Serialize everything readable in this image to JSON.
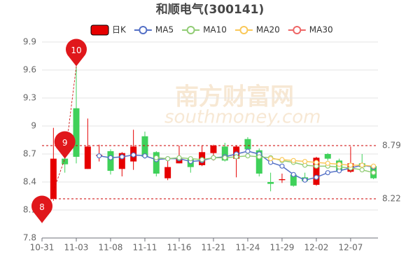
{
  "chart_data": {
    "type": "candlestick",
    "title": "和顺电气(300141)",
    "watermark": [
      "南方财富网",
      "southmoney.com"
    ],
    "categories": [
      "10-31",
      null,
      null,
      "11-03",
      null,
      null,
      "11-08",
      null,
      null,
      "11-11",
      null,
      null,
      "11-16",
      null,
      null,
      "11-21",
      null,
      null,
      "11-24",
      null,
      null,
      "11-29",
      null,
      null,
      "12-02",
      null,
      null,
      "12-07",
      null,
      null
    ],
    "ylim": [
      7.8,
      9.9
    ],
    "yticks": [
      7.8,
      8.1,
      8.4,
      8.7,
      9,
      9.3,
      9.6,
      9.9
    ],
    "grid": true,
    "legend": "top",
    "candles": {
      "name": "日K",
      "up_color": "#e60000",
      "down_color": "#3fd15a",
      "open": [
        null,
        8.22,
        8.65,
        9.19,
        8.54,
        8.68,
        8.73,
        8.54,
        8.62,
        8.89,
        8.72,
        8.44,
        8.6,
        8.65,
        8.58,
        8.71,
        8.78,
        8.65,
        8.86,
        8.74,
        8.4,
        8.42,
        8.48,
        8.45,
        8.37,
        8.7,
        8.63,
        8.51,
        8.6,
        8.57
      ],
      "close": [
        null,
        8.65,
        8.59,
        8.67,
        8.78,
        8.69,
        8.52,
        8.71,
        8.78,
        8.67,
        8.49,
        8.56,
        8.65,
        8.56,
        8.72,
        8.79,
        8.63,
        8.78,
        8.75,
        8.49,
        8.38,
        8.43,
        8.36,
        8.41,
        8.66,
        8.65,
        8.52,
        8.6,
        8.56,
        8.44
      ],
      "high": [
        null,
        8.98,
        8.78,
        9.64,
        9.08,
        8.8,
        8.75,
        8.72,
        8.96,
        8.94,
        8.73,
        8.66,
        8.79,
        8.67,
        8.79,
        8.8,
        8.82,
        8.79,
        8.88,
        8.76,
        8.5,
        8.49,
        8.5,
        8.5,
        8.67,
        8.71,
        8.65,
        8.78,
        8.7,
        8.58
      ],
      "low": [
        null,
        8.2,
        8.5,
        8.6,
        8.54,
        8.62,
        8.48,
        8.46,
        8.53,
        8.65,
        8.46,
        8.42,
        8.6,
        8.5,
        8.57,
        8.63,
        8.62,
        8.45,
        8.72,
        8.46,
        8.3,
        8.39,
        8.35,
        8.4,
        8.36,
        8.63,
        8.51,
        8.5,
        8.55,
        8.43
      ]
    },
    "series": [
      {
        "name": "MA5",
        "color": "#5470c6",
        "values": [
          null,
          null,
          null,
          null,
          null,
          8.68,
          8.66,
          8.67,
          8.69,
          8.68,
          8.64,
          8.65,
          8.65,
          8.62,
          8.63,
          8.66,
          8.67,
          8.7,
          8.73,
          8.7,
          8.61,
          8.57,
          8.48,
          8.42,
          8.45,
          8.5,
          8.52,
          8.55,
          8.58,
          8.56
        ]
      },
      {
        "name": "MA10",
        "color": "#91cc75",
        "values": [
          null,
          null,
          null,
          null,
          null,
          null,
          null,
          null,
          null,
          null,
          8.66,
          8.65,
          8.66,
          8.65,
          8.64,
          8.66,
          8.66,
          8.67,
          8.68,
          8.67,
          8.66,
          8.63,
          8.61,
          8.58,
          8.57,
          8.57,
          8.56,
          8.55,
          8.53,
          8.5
        ]
      },
      {
        "name": "MA20",
        "color": "#fac858",
        "values": [
          null,
          null,
          null,
          null,
          null,
          null,
          null,
          null,
          null,
          null,
          null,
          null,
          null,
          null,
          null,
          null,
          null,
          null,
          null,
          null,
          8.65,
          8.64,
          8.63,
          8.62,
          8.61,
          8.6,
          8.59,
          8.58,
          8.58,
          8.57
        ]
      },
      {
        "name": "MA30",
        "color": "#ee6666",
        "values": [
          null,
          null,
          null,
          null,
          null,
          null,
          null,
          null,
          null,
          null,
          null,
          null,
          null,
          null,
          null,
          null,
          null,
          null,
          null,
          null,
          null,
          null,
          null,
          null,
          null,
          null,
          null,
          null,
          null,
          null
        ]
      }
    ],
    "reference_lines": [
      8.79,
      8.22
    ],
    "pins": [
      {
        "label": "10",
        "index": 3,
        "value": 9.64
      },
      {
        "label": "9",
        "index": 2,
        "value": 8.65
      },
      {
        "label": "8",
        "index": 0,
        "value": 7.96
      }
    ]
  }
}
